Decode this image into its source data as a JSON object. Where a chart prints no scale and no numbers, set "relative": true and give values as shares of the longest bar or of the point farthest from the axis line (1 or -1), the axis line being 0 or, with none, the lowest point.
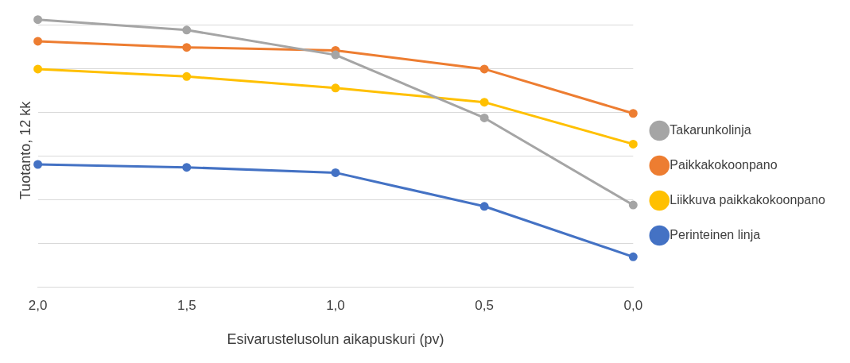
{
  "chart_data": {
    "type": "line",
    "xlabel": "Esivarustelusolun aikapuskuri (pv)",
    "ylabel": "Tuotanto, 12 kk",
    "categories": [
      "2,0",
      "1,5",
      "1,0",
      "0,5",
      "0,0"
    ],
    "relative": true,
    "grid": "y",
    "legend": "right",
    "marker": "circle",
    "series": [
      {
        "name": "Takarunkolinja",
        "color": "#a5a5a5",
        "values": [
          1,
          0.961,
          0.868,
          0.632,
          0.306
        ]
      },
      {
        "name": "Paikkakokoonpano",
        "color": "#ed7d31",
        "values": [
          0.919,
          0.896,
          0.885,
          0.815,
          0.649
        ]
      },
      {
        "name": "Liikkuva paikkakokoonpano",
        "color": "#ffc000",
        "values": [
          0.815,
          0.787,
          0.744,
          0.691,
          0.534
        ]
      },
      {
        "name": "Perinteinen linja",
        "color": "#4472c4",
        "values": [
          0.458,
          0.447,
          0.427,
          0.301,
          0.112
        ]
      }
    ]
  }
}
